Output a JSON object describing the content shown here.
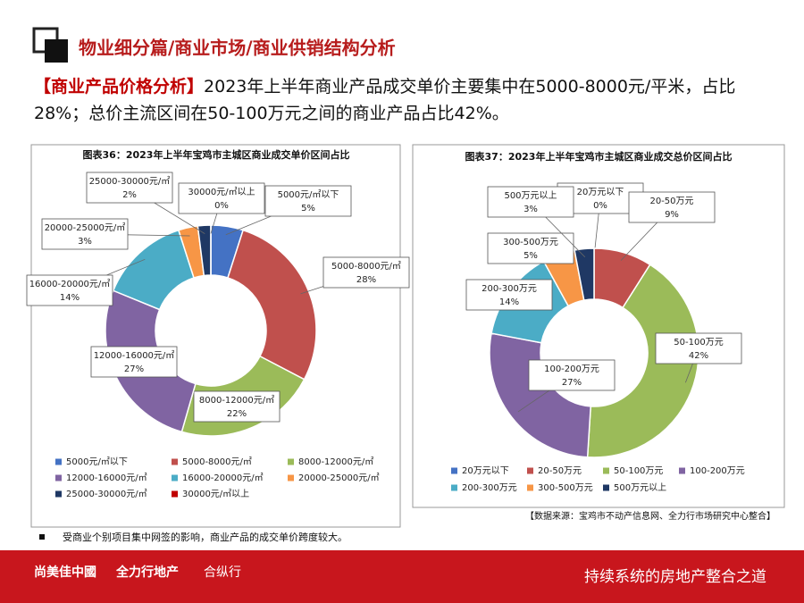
{
  "header": {
    "title": "物业细分篇/商业市场/商业供销结构分析"
  },
  "summary": {
    "tag": "【商业产品价格分析】",
    "text": "2023年上半年商业产品成交单价主要集中在5000-8000元/平米，占比28%；总价主流区间在50-100万元之间的商业产品占比42%。"
  },
  "chart_data": [
    {
      "type": "donut",
      "title": "图表36：2023年上半年宝鸡市主城区商业成交单价区间占比",
      "categories": [
        "5000元/㎡以下",
        "5000-8000元/㎡",
        "8000-12000元/㎡",
        "12000-16000元/㎡",
        "16000-20000元/㎡",
        "20000-25000元/㎡",
        "25000-30000元/㎡",
        "30000元/㎡以上"
      ],
      "values": [
        5,
        28,
        22,
        27,
        14,
        3,
        2,
        0
      ],
      "value_labels": [
        "5%",
        "28%",
        "22%",
        "27%",
        "14%",
        "3%",
        "2%",
        "0%"
      ],
      "colors": [
        "#4472c4",
        "#c0504d",
        "#9bbb59",
        "#8064a2",
        "#4bacc6",
        "#f79646",
        "#1f3864",
        "#c00000"
      ]
    },
    {
      "type": "donut",
      "title": "图表37：2023年上半年宝鸡市主城区商业成交总价区间占比",
      "categories": [
        "20万元以下",
        "20-50万元",
        "50-100万元",
        "100-200万元",
        "200-300万元",
        "300-500万元",
        "500万元以上"
      ],
      "values": [
        0,
        9,
        42,
        27,
        14,
        5,
        3
      ],
      "value_labels": [
        "0%",
        "9%",
        "42%",
        "27%",
        "14%",
        "5%",
        "3%"
      ],
      "colors": [
        "#4472c4",
        "#c0504d",
        "#9bbb59",
        "#8064a2",
        "#4bacc6",
        "#f79646",
        "#1f3864"
      ]
    }
  ],
  "source": "【数据来源：宝鸡市不动产信息网、全力行市场研究中心整合】",
  "note": "受商业个别项目集中网签的影响，商业产品的成交单价跨度较大。",
  "footer": {
    "brand1": "尚美佳中國",
    "brand2": "全力行地产",
    "brand3": "合纵行",
    "slogan": "持续系统的房地产整合之道"
  }
}
